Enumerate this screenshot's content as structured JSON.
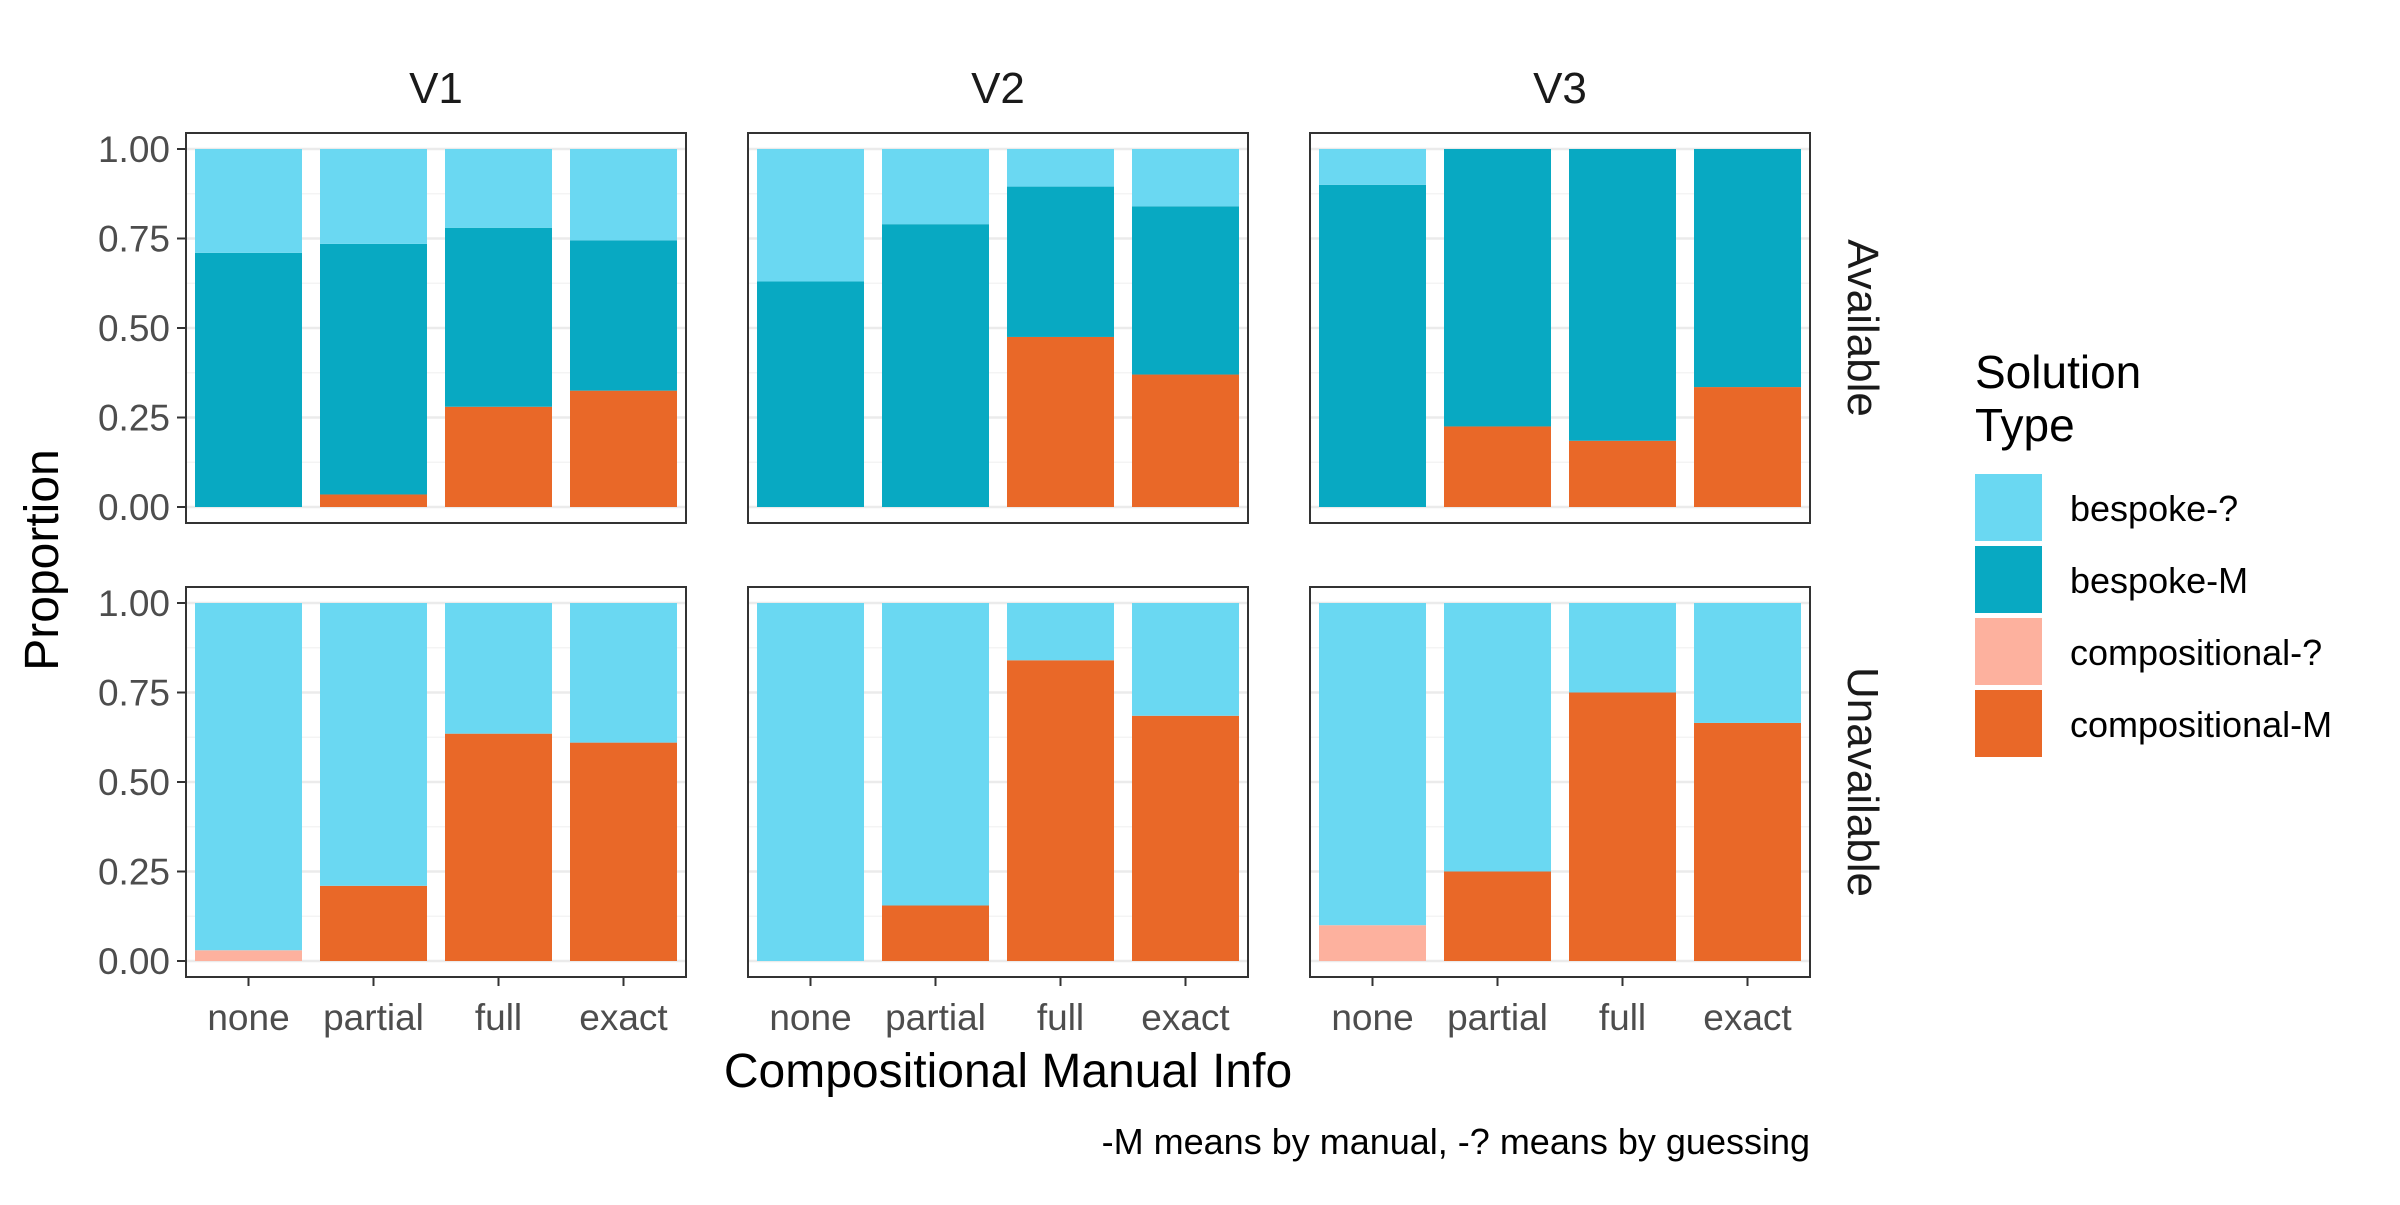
{
  "chart_data": {
    "type": "bar",
    "stacked": true,
    "normalized": true,
    "facet_columns": [
      "V1",
      "V2",
      "V3"
    ],
    "facet_rows": [
      "Available",
      "Unavailable"
    ],
    "categories": [
      "none",
      "partial",
      "full",
      "exact"
    ],
    "xlabel": "Compositional Manual Info",
    "ylabel": "Proportion",
    "ylim": [
      0,
      1
    ],
    "yticks": [
      "0.00",
      "0.25",
      "0.50",
      "0.75",
      "1.00"
    ],
    "yticks_values": [
      0,
      0.25,
      0.5,
      0.75,
      1.0
    ],
    "grid": true,
    "legend": {
      "title_lines": [
        "Solution",
        "Type"
      ],
      "position": "right",
      "entries": [
        "bespoke-?",
        "bespoke-M",
        "compositional-?",
        "compositional-M"
      ]
    },
    "caption": "-M means by manual, -? means by guessing",
    "colors": {
      "bespoke-?": "#6AD8F2",
      "bespoke-M": "#08A9C2",
      "compositional-?": "#FDB19E",
      "compositional-M": "#E96828"
    },
    "series_order": [
      "bespoke-?",
      "bespoke-M",
      "compositional-?",
      "compositional-M"
    ],
    "panels": [
      {
        "column": "V1",
        "row": "Available",
        "series": [
          {
            "name": "bespoke-?",
            "values": [
              0.29,
              0.265,
              0.22,
              0.255
            ]
          },
          {
            "name": "bespoke-M",
            "values": [
              0.71,
              0.7,
              0.5,
              0.42
            ]
          },
          {
            "name": "compositional-?",
            "values": [
              0,
              0,
              0,
              0
            ]
          },
          {
            "name": "compositional-M",
            "values": [
              0,
              0.035,
              0.28,
              0.325
            ]
          }
        ]
      },
      {
        "column": "V2",
        "row": "Available",
        "series": [
          {
            "name": "bespoke-?",
            "values": [
              0.37,
              0.21,
              0.105,
              0.16
            ]
          },
          {
            "name": "bespoke-M",
            "values": [
              0.63,
              0.79,
              0.42,
              0.47
            ]
          },
          {
            "name": "compositional-?",
            "values": [
              0,
              0,
              0,
              0
            ]
          },
          {
            "name": "compositional-M",
            "values": [
              0,
              0,
              0.475,
              0.37
            ]
          }
        ]
      },
      {
        "column": "V3",
        "row": "Available",
        "series": [
          {
            "name": "bespoke-?",
            "values": [
              0.1,
              0,
              0,
              0
            ]
          },
          {
            "name": "bespoke-M",
            "values": [
              0.9,
              0.775,
              0.815,
              0.665
            ]
          },
          {
            "name": "compositional-?",
            "values": [
              0,
              0,
              0,
              0
            ]
          },
          {
            "name": "compositional-M",
            "values": [
              0,
              0.225,
              0.185,
              0.335
            ]
          }
        ]
      },
      {
        "column": "V1",
        "row": "Unavailable",
        "series": [
          {
            "name": "bespoke-?",
            "values": [
              0.97,
              0.79,
              0.365,
              0.39
            ]
          },
          {
            "name": "bespoke-M",
            "values": [
              0,
              0,
              0,
              0
            ]
          },
          {
            "name": "compositional-?",
            "values": [
              0.03,
              0,
              0,
              0
            ]
          },
          {
            "name": "compositional-M",
            "values": [
              0,
              0.21,
              0.635,
              0.61
            ]
          }
        ]
      },
      {
        "column": "V2",
        "row": "Unavailable",
        "series": [
          {
            "name": "bespoke-?",
            "values": [
              1.0,
              0.845,
              0.16,
              0.315
            ]
          },
          {
            "name": "bespoke-M",
            "values": [
              0,
              0,
              0,
              0
            ]
          },
          {
            "name": "compositional-?",
            "values": [
              0,
              0,
              0,
              0
            ]
          },
          {
            "name": "compositional-M",
            "values": [
              0,
              0.155,
              0.84,
              0.685
            ]
          }
        ]
      },
      {
        "column": "V3",
        "row": "Unavailable",
        "series": [
          {
            "name": "bespoke-?",
            "values": [
              0.9,
              0.75,
              0.25,
              0.335
            ]
          },
          {
            "name": "bespoke-M",
            "values": [
              0,
              0,
              0,
              0
            ]
          },
          {
            "name": "compositional-?",
            "values": [
              0.1,
              0,
              0,
              0
            ]
          },
          {
            "name": "compositional-M",
            "values": [
              0,
              0.25,
              0.75,
              0.665
            ]
          }
        ]
      }
    ]
  }
}
